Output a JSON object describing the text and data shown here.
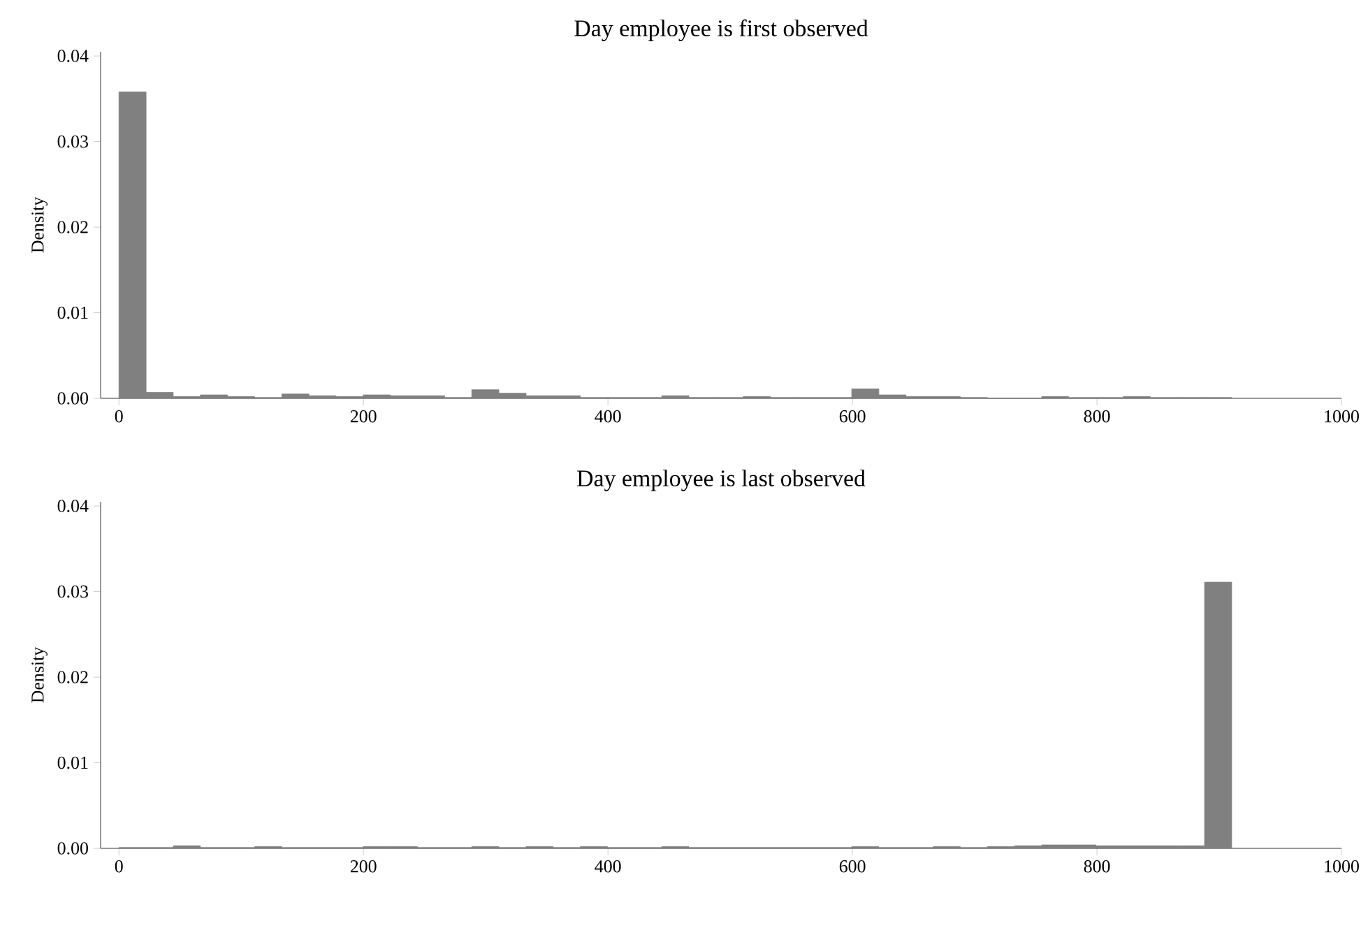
{
  "chart_data": [
    {
      "type": "histogram",
      "title": "Day employee is first observed",
      "ylabel": "Density",
      "color": "#808080",
      "bins": [
        0,
        22.2,
        44.4,
        66.6,
        88.8,
        111,
        133.2,
        155.4,
        177.6,
        199.8,
        222,
        244.2,
        266.4,
        288.6,
        310.8,
        333,
        355.2,
        377.4,
        399.6,
        421.8,
        444,
        466.2,
        488.4,
        510.6,
        532.8,
        555,
        577.2,
        599.4,
        621.6,
        643.8,
        666,
        688.2,
        710.4,
        732.6,
        754.8,
        777,
        799.2,
        821.4,
        843.6,
        865.8,
        888,
        910.2
      ],
      "values": [
        0.0358,
        0.0007,
        0.0002,
        0.0004,
        0.0002,
        0.0001,
        0.0005,
        0.0003,
        0.0002,
        0.0004,
        0.0003,
        0.0003,
        0.0001,
        0.001,
        0.0006,
        0.0003,
        0.0003,
        0.0001,
        0.0001,
        0.0001,
        0.0003,
        0.0001,
        0.0001,
        0.0002,
        0.0001,
        0.0001,
        0.0001,
        0.0011,
        0.0004,
        0.0002,
        0.0002,
        0.0001,
        0,
        0,
        0.0002,
        0.0001,
        0.0001,
        0.0002,
        0.0001,
        0.0001,
        0.0001
      ],
      "xlim": [
        -15,
        1000
      ],
      "ylim": [
        0,
        0.0405
      ],
      "xticks": [
        0,
        200,
        400,
        600,
        800,
        1000
      ],
      "yticks": [
        {
          "value": 0,
          "label": "0.00"
        },
        {
          "value": 0.01,
          "label": "0.01"
        },
        {
          "value": 0.02,
          "label": "0.02"
        },
        {
          "value": 0.03,
          "label": "0.03"
        },
        {
          "value": 0.04,
          "label": "0.04"
        }
      ]
    },
    {
      "type": "histogram",
      "title": "Day employee is last observed",
      "ylabel": "Density",
      "color": "#808080",
      "bins": [
        0,
        22.2,
        44.4,
        66.6,
        88.8,
        111,
        133.2,
        155.4,
        177.6,
        199.8,
        222,
        244.2,
        266.4,
        288.6,
        310.8,
        333,
        355.2,
        377.4,
        399.6,
        421.8,
        444,
        466.2,
        488.4,
        510.6,
        532.8,
        555,
        577.2,
        599.4,
        621.6,
        643.8,
        666,
        688.2,
        710.4,
        732.6,
        754.8,
        777,
        799.2,
        821.4,
        843.6,
        865.8,
        888,
        910.2
      ],
      "values": [
        0.0001,
        0.0001,
        0.0003,
        0.0001,
        0.0001,
        0.0002,
        0.0001,
        0.0001,
        0.0001,
        0.0002,
        0.0002,
        0.0001,
        0.0001,
        0.0002,
        0.0001,
        0.0002,
        0.0001,
        0.0002,
        0.0001,
        0.0001,
        0.0002,
        0.0001,
        0.0001,
        0.0001,
        0.0001,
        0.0001,
        0.0001,
        0.0002,
        0.0001,
        0.0001,
        0.0002,
        0.0001,
        0.0002,
        0.0003,
        0.0004,
        0.0004,
        0.0003,
        0.0003,
        0.0003,
        0.0003,
        0.0311
      ],
      "xlim": [
        -15,
        1000
      ],
      "ylim": [
        0,
        0.0405
      ],
      "xticks": [
        0,
        200,
        400,
        600,
        800,
        1000
      ],
      "yticks": [
        {
          "value": 0,
          "label": "0.00"
        },
        {
          "value": 0.01,
          "label": "0.01"
        },
        {
          "value": 0.02,
          "label": "0.02"
        },
        {
          "value": 0.03,
          "label": "0.03"
        },
        {
          "value": 0.04,
          "label": "0.04"
        }
      ]
    }
  ]
}
